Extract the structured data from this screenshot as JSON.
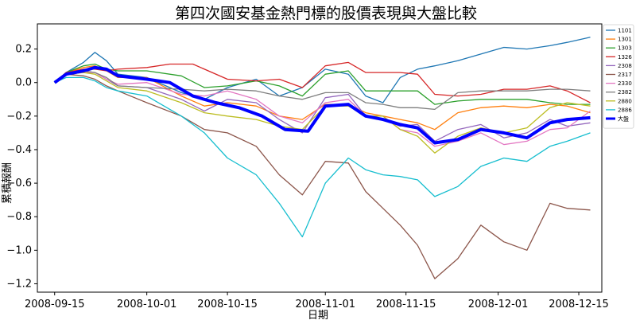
{
  "chart_data": {
    "type": "line",
    "title": "第四次國安基金熱門標的股價表現與大盤比較",
    "xlabel": "日期",
    "ylabel": "累積報酬",
    "ylim": [
      -1.25,
      0.35
    ],
    "xlim": [
      "2008-09-12",
      "2008-12-19"
    ],
    "yticks": [
      0.2,
      0.0,
      -0.2,
      -0.4,
      -0.6,
      -0.8,
      -1.0,
      -1.2
    ],
    "ytick_labels": [
      "0.2",
      "0.0",
      "−0.2",
      "−0.4",
      "−0.6",
      "−0.8",
      "−1.0",
      "−1.2"
    ],
    "xticks": [
      "2008-09-15",
      "2008-10-01",
      "2008-10-15",
      "2008-11-01",
      "2008-11-15",
      "2008-12-01",
      "2008-12-15"
    ],
    "grid": false,
    "legend_position": "top-right",
    "series": [
      {
        "name": "1101",
        "color": "#1f77b4",
        "x": [
          "2008-09-15",
          "2008-09-17",
          "2008-09-20",
          "2008-09-22",
          "2008-09-24",
          "2008-09-26",
          "2008-10-01",
          "2008-10-07",
          "2008-10-11",
          "2008-10-15",
          "2008-10-20",
          "2008-10-24",
          "2008-10-28",
          "2008-11-01",
          "2008-11-05",
          "2008-11-08",
          "2008-11-11",
          "2008-11-14",
          "2008-11-17",
          "2008-11-20",
          "2008-11-24",
          "2008-11-28",
          "2008-12-02",
          "2008-12-06",
          "2008-12-10",
          "2008-12-13",
          "2008-12-17"
        ],
        "values": [
          0.0,
          0.06,
          0.12,
          0.18,
          0.13,
          0.05,
          0.03,
          -0.06,
          -0.1,
          -0.03,
          0.02,
          -0.08,
          -0.03,
          0.08,
          0.05,
          -0.08,
          -0.12,
          0.03,
          0.08,
          0.1,
          0.13,
          0.17,
          0.21,
          0.2,
          0.22,
          0.24,
          0.27
        ]
      },
      {
        "name": "1301",
        "color": "#ff7f0e",
        "x": [
          "2008-09-15",
          "2008-09-17",
          "2008-09-20",
          "2008-09-22",
          "2008-09-24",
          "2008-09-26",
          "2008-10-01",
          "2008-10-07",
          "2008-10-11",
          "2008-10-15",
          "2008-10-20",
          "2008-10-24",
          "2008-10-28",
          "2008-11-01",
          "2008-11-05",
          "2008-11-08",
          "2008-11-11",
          "2008-11-14",
          "2008-11-17",
          "2008-11-20",
          "2008-11-24",
          "2008-11-28",
          "2008-12-02",
          "2008-12-06",
          "2008-12-10",
          "2008-12-13",
          "2008-12-17"
        ],
        "values": [
          0.0,
          0.06,
          0.09,
          0.1,
          0.07,
          0.03,
          0.03,
          -0.08,
          -0.14,
          -0.12,
          -0.14,
          -0.2,
          -0.22,
          -0.13,
          -0.13,
          -0.18,
          -0.2,
          -0.22,
          -0.24,
          -0.28,
          -0.18,
          -0.15,
          -0.14,
          -0.15,
          -0.13,
          -0.14,
          -0.18
        ]
      },
      {
        "name": "1303",
        "color": "#2ca02c",
        "x": [
          "2008-09-15",
          "2008-09-17",
          "2008-09-20",
          "2008-09-22",
          "2008-09-24",
          "2008-09-26",
          "2008-10-01",
          "2008-10-07",
          "2008-10-11",
          "2008-10-15",
          "2008-10-20",
          "2008-10-24",
          "2008-10-28",
          "2008-11-01",
          "2008-11-05",
          "2008-11-08",
          "2008-11-11",
          "2008-11-14",
          "2008-11-17",
          "2008-11-20",
          "2008-11-24",
          "2008-11-28",
          "2008-12-02",
          "2008-12-06",
          "2008-12-10",
          "2008-12-13",
          "2008-12-17"
        ],
        "values": [
          0.0,
          0.06,
          0.1,
          0.11,
          0.08,
          0.07,
          0.07,
          0.04,
          -0.03,
          -0.02,
          0.01,
          -0.02,
          -0.08,
          0.05,
          0.07,
          -0.05,
          -0.05,
          -0.05,
          -0.05,
          -0.13,
          -0.11,
          -0.1,
          -0.1,
          -0.1,
          -0.12,
          -0.13,
          -0.13
        ]
      },
      {
        "name": "1326",
        "color": "#d62728",
        "x": [
          "2008-09-15",
          "2008-09-17",
          "2008-09-20",
          "2008-09-22",
          "2008-09-24",
          "2008-09-26",
          "2008-10-01",
          "2008-10-05",
          "2008-10-09",
          "2008-10-15",
          "2008-10-20",
          "2008-10-24",
          "2008-10-28",
          "2008-11-01",
          "2008-11-05",
          "2008-11-08",
          "2008-11-11",
          "2008-11-14",
          "2008-11-17",
          "2008-11-20",
          "2008-11-24",
          "2008-11-28",
          "2008-12-02",
          "2008-12-06",
          "2008-12-10",
          "2008-12-13",
          "2008-12-17"
        ],
        "values": [
          0.0,
          0.06,
          0.08,
          0.08,
          0.07,
          0.08,
          0.09,
          0.11,
          0.11,
          0.02,
          0.01,
          0.02,
          -0.03,
          0.1,
          0.12,
          0.06,
          0.06,
          0.06,
          0.05,
          -0.07,
          -0.08,
          -0.07,
          -0.04,
          -0.04,
          -0.02,
          -0.05,
          -0.12
        ]
      },
      {
        "name": "2308",
        "color": "#9467bd",
        "x": [
          "2008-09-15",
          "2008-09-17",
          "2008-09-20",
          "2008-09-22",
          "2008-09-24",
          "2008-09-26",
          "2008-10-01",
          "2008-10-07",
          "2008-10-11",
          "2008-10-15",
          "2008-10-20",
          "2008-10-24",
          "2008-10-28",
          "2008-11-01",
          "2008-11-05",
          "2008-11-08",
          "2008-11-11",
          "2008-11-14",
          "2008-11-17",
          "2008-11-20",
          "2008-11-24",
          "2008-11-28",
          "2008-12-02",
          "2008-12-06",
          "2008-12-10",
          "2008-12-13",
          "2008-12-17"
        ],
        "values": [
          0.0,
          0.05,
          0.07,
          0.06,
          0.02,
          -0.02,
          -0.03,
          -0.1,
          -0.17,
          -0.1,
          -0.12,
          -0.22,
          -0.3,
          -0.09,
          -0.07,
          -0.2,
          -0.22,
          -0.26,
          -0.25,
          -0.35,
          -0.28,
          -0.25,
          -0.33,
          -0.3,
          -0.22,
          -0.26,
          -0.24
        ]
      },
      {
        "name": "2317",
        "color": "#8c564b",
        "x": [
          "2008-09-15",
          "2008-09-17",
          "2008-09-20",
          "2008-09-22",
          "2008-09-24",
          "2008-09-26",
          "2008-10-01",
          "2008-10-07",
          "2008-10-11",
          "2008-10-15",
          "2008-10-20",
          "2008-10-24",
          "2008-10-28",
          "2008-11-01",
          "2008-11-05",
          "2008-11-08",
          "2008-11-11",
          "2008-11-14",
          "2008-11-17",
          "2008-11-20",
          "2008-11-24",
          "2008-11-28",
          "2008-12-02",
          "2008-12-06",
          "2008-12-10",
          "2008-12-13",
          "2008-12-17"
        ],
        "values": [
          0.0,
          0.05,
          0.04,
          0.02,
          -0.02,
          -0.05,
          -0.12,
          -0.2,
          -0.28,
          -0.3,
          -0.38,
          -0.55,
          -0.67,
          -0.47,
          -0.48,
          -0.65,
          -0.75,
          -0.85,
          -0.97,
          -1.17,
          -1.05,
          -0.85,
          -0.95,
          -1.0,
          -0.72,
          -0.75,
          -0.76
        ]
      },
      {
        "name": "2330",
        "color": "#e377c2",
        "x": [
          "2008-09-15",
          "2008-09-17",
          "2008-09-20",
          "2008-09-22",
          "2008-09-24",
          "2008-09-26",
          "2008-10-01",
          "2008-10-07",
          "2008-10-11",
          "2008-10-15",
          "2008-10-20",
          "2008-10-24",
          "2008-10-28",
          "2008-11-01",
          "2008-11-05",
          "2008-11-08",
          "2008-11-11",
          "2008-11-14",
          "2008-11-17",
          "2008-11-20",
          "2008-11-24",
          "2008-11-28",
          "2008-12-02",
          "2008-12-06",
          "2008-12-10",
          "2008-12-13",
          "2008-12-17"
        ],
        "values": [
          0.0,
          0.05,
          0.06,
          0.06,
          0.02,
          -0.01,
          0.0,
          -0.07,
          -0.08,
          -0.05,
          -0.1,
          -0.2,
          -0.24,
          -0.12,
          -0.1,
          -0.2,
          -0.2,
          -0.28,
          -0.3,
          -0.38,
          -0.35,
          -0.3,
          -0.37,
          -0.35,
          -0.28,
          -0.27,
          -0.17
        ]
      },
      {
        "name": "2382",
        "color": "#7f7f7f",
        "x": [
          "2008-09-15",
          "2008-09-17",
          "2008-09-20",
          "2008-09-22",
          "2008-09-24",
          "2008-09-26",
          "2008-10-01",
          "2008-10-07",
          "2008-10-11",
          "2008-10-15",
          "2008-10-20",
          "2008-10-24",
          "2008-10-28",
          "2008-11-01",
          "2008-11-05",
          "2008-11-08",
          "2008-11-11",
          "2008-11-14",
          "2008-11-17",
          "2008-11-20",
          "2008-11-24",
          "2008-11-28",
          "2008-12-02",
          "2008-12-06",
          "2008-12-10",
          "2008-12-13",
          "2008-12-17"
        ],
        "values": [
          0.0,
          0.05,
          0.07,
          0.06,
          0.03,
          -0.02,
          -0.03,
          -0.04,
          -0.05,
          -0.04,
          -0.05,
          -0.08,
          -0.1,
          -0.06,
          -0.06,
          -0.12,
          -0.13,
          -0.15,
          -0.15,
          -0.16,
          -0.06,
          -0.05,
          -0.05,
          -0.05,
          -0.04,
          -0.04,
          -0.05
        ]
      },
      {
        "name": "2880",
        "color": "#bcbd22",
        "x": [
          "2008-09-15",
          "2008-09-17",
          "2008-09-20",
          "2008-09-22",
          "2008-09-24",
          "2008-09-26",
          "2008-10-01",
          "2008-10-07",
          "2008-10-11",
          "2008-10-15",
          "2008-10-20",
          "2008-10-24",
          "2008-10-28",
          "2008-11-01",
          "2008-11-05",
          "2008-11-08",
          "2008-11-11",
          "2008-11-14",
          "2008-11-17",
          "2008-11-20",
          "2008-11-24",
          "2008-11-28",
          "2008-12-02",
          "2008-12-06",
          "2008-12-10",
          "2008-12-13",
          "2008-12-17"
        ],
        "values": [
          0.0,
          0.05,
          0.06,
          0.05,
          0.01,
          -0.03,
          -0.05,
          -0.12,
          -0.18,
          -0.2,
          -0.22,
          -0.26,
          -0.28,
          -0.14,
          -0.14,
          -0.2,
          -0.2,
          -0.28,
          -0.32,
          -0.42,
          -0.32,
          -0.27,
          -0.3,
          -0.27,
          -0.15,
          -0.12,
          -0.14
        ]
      },
      {
        "name": "2886",
        "color": "#17becf",
        "x": [
          "2008-09-15",
          "2008-09-17",
          "2008-09-20",
          "2008-09-22",
          "2008-09-24",
          "2008-09-26",
          "2008-10-01",
          "2008-10-07",
          "2008-10-11",
          "2008-10-15",
          "2008-10-20",
          "2008-10-24",
          "2008-10-28",
          "2008-11-01",
          "2008-11-05",
          "2008-11-08",
          "2008-11-11",
          "2008-11-14",
          "2008-11-17",
          "2008-11-20",
          "2008-11-24",
          "2008-11-28",
          "2008-12-02",
          "2008-12-06",
          "2008-12-10",
          "2008-12-13",
          "2008-12-17"
        ],
        "values": [
          0.0,
          0.03,
          0.03,
          0.01,
          -0.03,
          -0.05,
          -0.08,
          -0.2,
          -0.3,
          -0.45,
          -0.55,
          -0.72,
          -0.92,
          -0.6,
          -0.45,
          -0.52,
          -0.55,
          -0.56,
          -0.58,
          -0.68,
          -0.62,
          -0.5,
          -0.45,
          -0.47,
          -0.38,
          -0.35,
          -0.3
        ]
      },
      {
        "name": "大盤",
        "color": "#0000ff",
        "x": [
          "2008-09-15",
          "2008-09-17",
          "2008-09-20",
          "2008-09-22",
          "2008-09-24",
          "2008-09-26",
          "2008-10-01",
          "2008-10-05",
          "2008-10-09",
          "2008-10-13",
          "2008-10-17",
          "2008-10-21",
          "2008-10-25",
          "2008-10-29",
          "2008-11-01",
          "2008-11-05",
          "2008-11-08",
          "2008-11-11",
          "2008-11-14",
          "2008-11-17",
          "2008-11-20",
          "2008-11-24",
          "2008-11-28",
          "2008-12-02",
          "2008-12-06",
          "2008-12-10",
          "2008-12-13",
          "2008-12-17"
        ],
        "values": [
          0.0,
          0.05,
          0.07,
          0.09,
          0.08,
          0.04,
          0.02,
          0.0,
          -0.08,
          -0.12,
          -0.15,
          -0.2,
          -0.28,
          -0.29,
          -0.14,
          -0.13,
          -0.2,
          -0.22,
          -0.25,
          -0.27,
          -0.36,
          -0.34,
          -0.28,
          -0.3,
          -0.33,
          -0.24,
          -0.22,
          -0.21
        ]
      }
    ]
  }
}
